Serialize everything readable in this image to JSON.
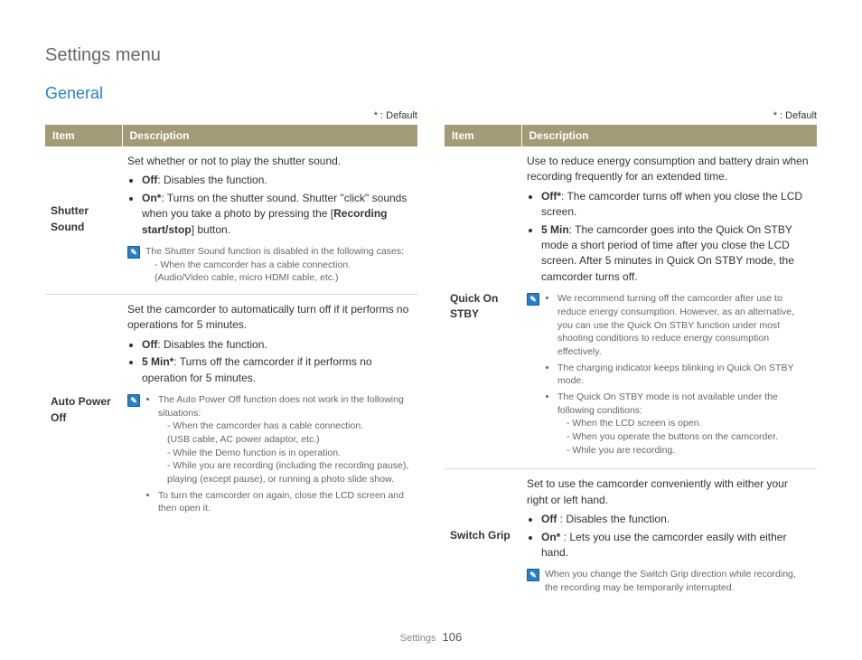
{
  "pageTitle": "Settings menu",
  "sectionTitle": "General",
  "defaultMarker": "* : Default",
  "headers": {
    "item": "Item",
    "description": "Description"
  },
  "footer": {
    "label": "Settings",
    "page": "106"
  },
  "colors": {
    "title": "#666666",
    "section": "#2a7fc9",
    "th_bg": "#a39b75",
    "th_fg": "#ffffff",
    "body_text": "#333333",
    "note_text": "#666666",
    "border": "#d8d8d8"
  },
  "left": [
    {
      "name": "Shutter Sound",
      "intro": "Set whether or not to play the shutter sound.",
      "bullets": [
        {
          "label": "Off",
          "text": ": Disables the function."
        },
        {
          "label": "On*",
          "text": ": Turns on the shutter sound. Shutter \"click\" sounds when you take a photo by pressing the [",
          "bold2": "Recording start/stop",
          "tail": "] button."
        }
      ],
      "note": {
        "lines": [
          "The Shutter Sound function is disabled in the following cases:",
          "- When the camcorder has a cable connection.",
          "  (Audio/Video cable, micro HDMI cable, etc.)"
        ]
      }
    },
    {
      "name": "Auto Power Off",
      "intro": "Set the camcorder to automatically turn off if it performs no operations for 5 minutes.",
      "bullets": [
        {
          "label": "Off",
          "text": ": Disables the function."
        },
        {
          "label": "5 Min*",
          "text": ": Turns off the camcorder if it performs no operation for 5 minutes."
        }
      ],
      "note_list": [
        {
          "head": "The Auto Power Off function does not work in the following situations:",
          "subs": [
            "- When the camcorder has a cable connection.",
            "  (USB cable, AC power adaptor, etc.)",
            "- While the Demo function is in operation.",
            "- While you are recording (including the recording pause), playing (except pause), or running a photo slide show."
          ]
        },
        {
          "head": "To turn the camcorder on again, close the LCD screen and then open it.",
          "subs": []
        }
      ]
    }
  ],
  "right": [
    {
      "name": "Quick On STBY",
      "intro": "Use to reduce energy consumption and battery drain when recording frequently for an extended time.",
      "bullets": [
        {
          "label": "Off*",
          "text": ": The camcorder turns off when you close the LCD screen."
        },
        {
          "label": "5 Min",
          "text": ": The camcorder goes into the Quick On STBY mode a short period of time after you close the LCD screen. After 5 minutes in Quick On STBY mode, the camcorder turns off."
        }
      ],
      "note_list": [
        {
          "head": "We recommend turning off the camcorder after use to reduce energy consumption. However, as an alternative, you can use the Quick On STBY function under most shooting conditions to reduce energy consumption effectively.",
          "subs": []
        },
        {
          "head": "The charging indicator keeps blinking in Quick On STBY mode.",
          "subs": []
        },
        {
          "head": "The Quick On STBY mode is not available under the following conditions:",
          "subs": [
            "- When the LCD screen is open.",
            "- When you operate the buttons on the camcorder.",
            "- While you are recording."
          ]
        }
      ]
    },
    {
      "name": "Switch Grip",
      "intro": "Set to use the camcorder conveniently with either your right or left hand.",
      "bullets": [
        {
          "label": "Off ",
          "text": ": Disables the function."
        },
        {
          "label": "On* ",
          "text": ": Lets you use the camcorder easily with either hand."
        }
      ],
      "note": {
        "lines": [
          "When you change the Switch Grip direction while recording, the recording may be temporarily interrupted."
        ]
      }
    }
  ]
}
